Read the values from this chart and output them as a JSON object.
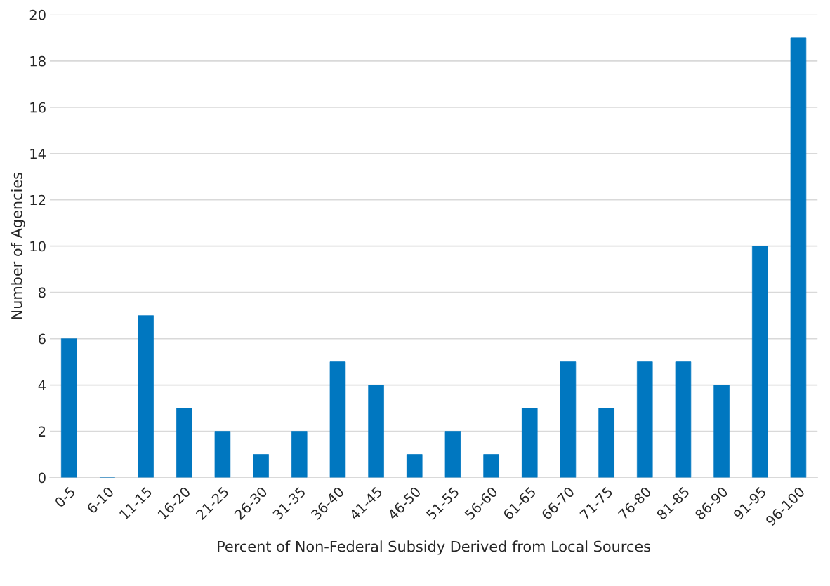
{
  "chart_data": {
    "type": "bar",
    "xlabel": "Percent of Non-Federal Subsidy Derived from Local Sources",
    "ylabel": "Number of Agencies",
    "categories": [
      "0-5",
      "6-10",
      "11-15",
      "16-20",
      "21-25",
      "26-30",
      "31-35",
      "36-40",
      "41-45",
      "46-50",
      "51-55",
      "56-60",
      "61-65",
      "66-70",
      "71-75",
      "76-80",
      "81-85",
      "86-90",
      "91-95",
      "96-100"
    ],
    "values": [
      6,
      0,
      7,
      3,
      2,
      1,
      2,
      5,
      4,
      1,
      2,
      1,
      3,
      5,
      3,
      5,
      5,
      4,
      10,
      19
    ],
    "color": "#0077c0",
    "ylim": [
      0,
      20
    ],
    "yticks": [
      0,
      2,
      4,
      6,
      8,
      10,
      12,
      14,
      16,
      18,
      20
    ],
    "grid": "y",
    "legend": false
  }
}
